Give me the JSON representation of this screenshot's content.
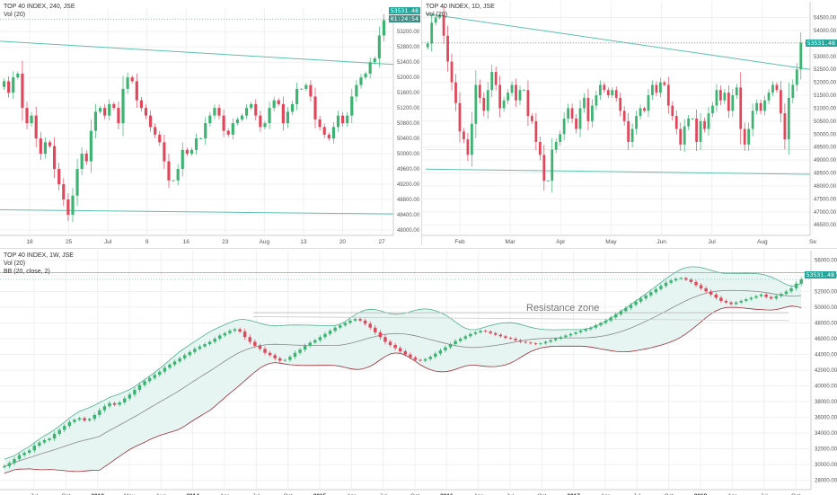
{
  "colors": {
    "up": "#26a69a",
    "up_candle": "#3cb371",
    "down": "#e0475b",
    "trend": "#5cc0ae",
    "band": "#e6f5f2",
    "band_line": "#4fae8f",
    "lower_band": "#9e2b35",
    "sma": "#888888",
    "grid": "#f0f0f0",
    "axis": "#cccccc"
  },
  "panes": {
    "p240": {
      "legend": [
        "TOP 40 INDEX, 240, JSE",
        "Vol (20)"
      ],
      "price_tag": "53531.48",
      "price_tag2": "01:24:54",
      "y_ticks": [
        "53200.00",
        "52800.00",
        "52400.00",
        "52000.00",
        "51600.00",
        "51200.00",
        "50800.00",
        "50400.00",
        "50000.00",
        "49600.00",
        "49200.00",
        "48800.00",
        "48400.00",
        "48000.00"
      ],
      "x_ticks": [
        "18",
        "25",
        "Jul",
        "9",
        "16",
        "23",
        "Aug",
        "13",
        "20",
        "27"
      ]
    },
    "p1d": {
      "legend": [
        "TOP 40 INDEX, 1D, JSE",
        "Vol (20)"
      ],
      "price_tag": "53531.48",
      "y_ticks": [
        "54500.00",
        "54000.00",
        "53500.00",
        "53000.00",
        "52500.00",
        "52000.00",
        "51500.00",
        "51000.00",
        "50500.00",
        "50000.00",
        "49500.00",
        "49000.00",
        "48500.00",
        "48000.00",
        "47500.00",
        "47000.00",
        "46500.00"
      ],
      "x_ticks": [
        "Feb",
        "Mar",
        "Apr",
        "May",
        "Jun",
        "Jul",
        "Aug",
        "Se"
      ]
    },
    "p1w": {
      "legend": [
        "TOP 40 INDEX, 1W, JSE",
        "Vol (20)",
        "BB (20, close, 2)"
      ],
      "price_tag": "53531.48",
      "annotation": "Resistance zone",
      "y_ticks": [
        "56000.00",
        "54000.00",
        "52000.00",
        "50000.00",
        "48000.00",
        "46000.00",
        "44000.00",
        "42000.00",
        "40000.00",
        "38000.00",
        "36000.00",
        "34000.00",
        "32000.00",
        "30000.00",
        "28000.00"
      ],
      "x_ticks": [
        {
          "t": "Jul",
          "b": false
        },
        {
          "t": "Oct",
          "b": false
        },
        {
          "t": "2013",
          "b": true
        },
        {
          "t": "May",
          "b": false
        },
        {
          "t": "Aug",
          "b": false
        },
        {
          "t": "2014",
          "b": true
        },
        {
          "t": "Apr",
          "b": false
        },
        {
          "t": "Jul",
          "b": false
        },
        {
          "t": "Oct",
          "b": false
        },
        {
          "t": "2015",
          "b": true
        },
        {
          "t": "Apr",
          "b": false
        },
        {
          "t": "Jul",
          "b": false
        },
        {
          "t": "Oct",
          "b": false
        },
        {
          "t": "2016",
          "b": true
        },
        {
          "t": "Apr",
          "b": false
        },
        {
          "t": "Jul",
          "b": false
        },
        {
          "t": "Oct",
          "b": false
        },
        {
          "t": "2017",
          "b": true
        },
        {
          "t": "Apr",
          "b": false
        },
        {
          "t": "Jul",
          "b": false
        },
        {
          "t": "Oct",
          "b": false
        },
        {
          "t": "2018",
          "b": true
        },
        {
          "t": "Apr",
          "b": false
        },
        {
          "t": "Jul",
          "b": false
        },
        {
          "t": "Oct",
          "b": false
        }
      ]
    }
  },
  "chart_data": [
    {
      "type": "candlestick",
      "title": "TOP 40 INDEX, 240, JSE",
      "ylim": [
        48000,
        53700
      ],
      "last_price": 53531.48,
      "closes": [
        51900,
        51600,
        52000,
        52100,
        51200,
        50800,
        51000,
        50400,
        50000,
        50300,
        50200,
        49600,
        49200,
        48800,
        48400,
        48900,
        49600,
        50000,
        49800,
        50600,
        51100,
        51200,
        51000,
        51300,
        51200,
        50800,
        51700,
        52000,
        51900,
        51400,
        51200,
        51000,
        50700,
        50500,
        50300,
        49800,
        49300,
        49300,
        49600,
        50100,
        50000,
        50100,
        50400,
        50400,
        50800,
        51000,
        51200,
        51000,
        50600,
        50500,
        50800,
        50900,
        51000,
        51200,
        51300,
        51000,
        50700,
        50800,
        51200,
        51400,
        51300,
        50800,
        51100,
        51300,
        51700,
        51700,
        51800,
        51500,
        50900,
        50700,
        50500,
        50400,
        50700,
        51000,
        50800,
        51000,
        51500,
        51800,
        52000,
        52100,
        52400,
        52500,
        53100,
        53500
      ]
    },
    {
      "type": "candlestick",
      "title": "TOP 40 INDEX, 1D, JSE",
      "ylim": [
        46300,
        54900
      ],
      "last_price": 53531.48,
      "closes": [
        53500,
        54300,
        54500,
        54600,
        53800,
        52800,
        52000,
        51200,
        50100,
        49800,
        49200,
        50400,
        51900,
        51400,
        50900,
        51700,
        52400,
        51900,
        51000,
        51300,
        51600,
        51900,
        51300,
        51700,
        51700,
        50700,
        50500,
        49700,
        49200,
        48200,
        48200,
        49400,
        49700,
        50000,
        50600,
        51000,
        50600,
        50200,
        51000,
        51400,
        50500,
        51100,
        51500,
        51900,
        51700,
        51500,
        51700,
        51400,
        50900,
        50500,
        49700,
        50200,
        50700,
        51000,
        50900,
        51500,
        51900,
        51600,
        52000,
        51900,
        51100,
        50700,
        50200,
        49600,
        50300,
        50600,
        50600,
        49700,
        50500,
        50200,
        50800,
        51100,
        51700,
        51300,
        51600,
        50900,
        51500,
        51800,
        50200,
        49600,
        50200,
        50900,
        51200,
        50900,
        51300,
        51600,
        51900,
        51700,
        50800,
        49800,
        51400,
        51900,
        52500,
        53531
      ]
    },
    {
      "type": "candlestick",
      "title": "TOP 40 INDEX, 1W, JSE",
      "ylim": [
        27500,
        56500
      ],
      "last_price": 53531.48,
      "indicator": "BB (20, close, 2)",
      "closes": [
        29800,
        30200,
        30700,
        31200,
        31500,
        31800,
        32400,
        32800,
        33100,
        33300,
        33900,
        34400,
        34900,
        35400,
        35700,
        35900,
        35600,
        35800,
        36300,
        36900,
        37400,
        37800,
        37600,
        37900,
        38400,
        38900,
        39500,
        40100,
        40600,
        41000,
        41400,
        41800,
        42300,
        42700,
        43100,
        43500,
        43900,
        44300,
        44700,
        45000,
        45300,
        45600,
        46000,
        46400,
        46700,
        47000,
        47200,
        46900,
        46200,
        45600,
        45100,
        44700,
        44200,
        43900,
        43500,
        43200,
        43300,
        43700,
        44200,
        44600,
        45100,
        45500,
        45800,
        46200,
        46600,
        47000,
        47400,
        47700,
        48000,
        48300,
        48500,
        48300,
        47900,
        47400,
        46800,
        46200,
        45600,
        45200,
        44800,
        44400,
        44000,
        43600,
        43300,
        43200,
        43400,
        43700,
        44100,
        44500,
        44900,
        45300,
        45700,
        46000,
        46300,
        46600,
        46800,
        47000,
        46900,
        46700,
        46500,
        46300,
        46100,
        46000,
        45800,
        45600,
        45500,
        45400,
        45300,
        45400,
        45600,
        45800,
        46000,
        46200,
        46400,
        46600,
        46800,
        47000,
        47200,
        47400,
        47700,
        48000,
        48300,
        48700,
        49100,
        49500,
        49900,
        50300,
        50700,
        51100,
        51500,
        51900,
        52300,
        52700,
        53100,
        53400,
        53600,
        53700,
        53500,
        53200,
        52800,
        52400,
        52000,
        51600,
        51200,
        50800,
        50600,
        50400,
        50600,
        50800,
        51000,
        51200,
        51400,
        51600,
        51300,
        51100,
        51400,
        51700,
        52000,
        52400,
        53000,
        53531
      ]
    }
  ]
}
